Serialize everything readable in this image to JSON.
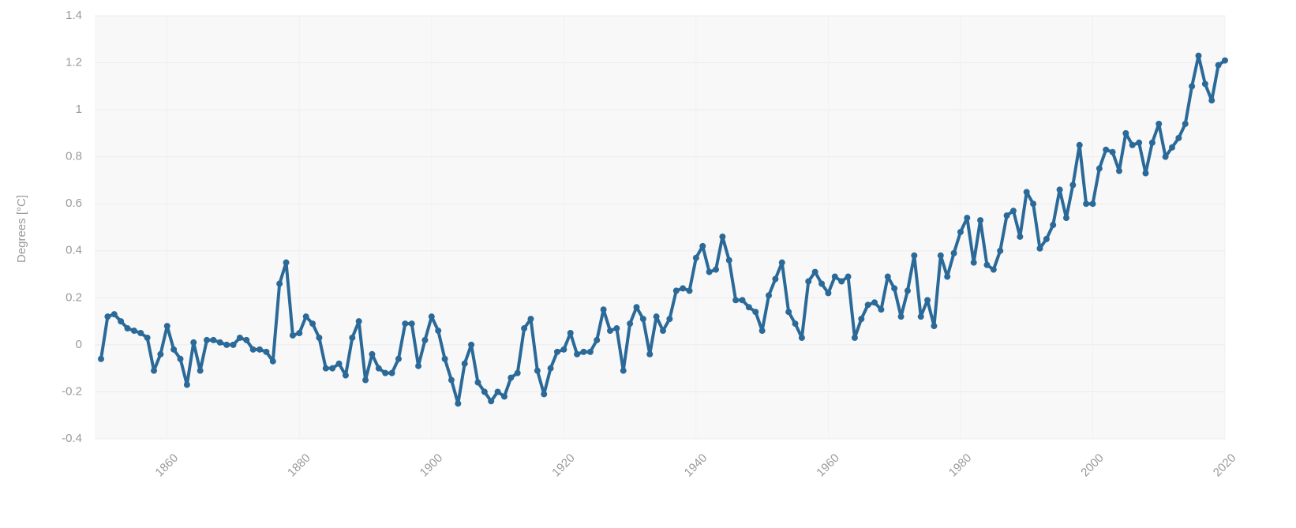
{
  "chart_data": {
    "type": "line",
    "y_label": "Degrees [°C]",
    "x": [
      1850,
      1851,
      1852,
      1853,
      1854,
      1855,
      1856,
      1857,
      1858,
      1859,
      1860,
      1861,
      1862,
      1863,
      1864,
      1865,
      1866,
      1867,
      1868,
      1869,
      1870,
      1871,
      1872,
      1873,
      1874,
      1875,
      1876,
      1877,
      1878,
      1879,
      1880,
      1881,
      1882,
      1883,
      1884,
      1885,
      1886,
      1887,
      1888,
      1889,
      1890,
      1891,
      1892,
      1893,
      1894,
      1895,
      1896,
      1897,
      1898,
      1899,
      1900,
      1901,
      1902,
      1903,
      1904,
      1905,
      1906,
      1907,
      1908,
      1909,
      1910,
      1911,
      1912,
      1913,
      1914,
      1915,
      1916,
      1917,
      1918,
      1919,
      1920,
      1921,
      1922,
      1923,
      1924,
      1925,
      1926,
      1927,
      1928,
      1929,
      1930,
      1931,
      1932,
      1933,
      1934,
      1935,
      1936,
      1937,
      1938,
      1939,
      1940,
      1941,
      1942,
      1943,
      1944,
      1945,
      1946,
      1947,
      1948,
      1949,
      1950,
      1951,
      1952,
      1953,
      1954,
      1955,
      1956,
      1957,
      1958,
      1959,
      1960,
      1961,
      1962,
      1963,
      1964,
      1965,
      1966,
      1967,
      1968,
      1969,
      1970,
      1971,
      1972,
      1973,
      1974,
      1975,
      1976,
      1977,
      1978,
      1979,
      1980,
      1981,
      1982,
      1983,
      1984,
      1985,
      1986,
      1987,
      1988,
      1989,
      1990,
      1991,
      1992,
      1993,
      1994,
      1995,
      1996,
      1997,
      1998,
      1999,
      2000,
      2001,
      2002,
      2003,
      2004,
      2005,
      2006,
      2007,
      2008,
      2009,
      2010,
      2011,
      2012,
      2013,
      2014,
      2015,
      2016,
      2017,
      2018,
      2019,
      2020
    ],
    "series": [
      {
        "color": "#2b6a98",
        "values": [
          -0.06,
          0.12,
          0.13,
          0.1,
          0.07,
          0.06,
          0.05,
          0.03,
          -0.11,
          -0.04,
          0.08,
          -0.02,
          -0.06,
          -0.17,
          0.01,
          -0.11,
          0.02,
          0.02,
          0.01,
          0.0,
          0.0,
          0.03,
          0.02,
          -0.02,
          -0.02,
          -0.03,
          -0.07,
          0.26,
          0.35,
          0.04,
          0.05,
          0.12,
          0.09,
          0.03,
          -0.1,
          -0.1,
          -0.08,
          -0.13,
          0.03,
          0.1,
          -0.15,
          -0.04,
          -0.1,
          -0.12,
          -0.12,
          -0.06,
          0.09,
          0.09,
          -0.09,
          0.02,
          0.12,
          0.06,
          -0.06,
          -0.15,
          -0.25,
          -0.08,
          0.0,
          -0.16,
          -0.2,
          -0.24,
          -0.2,
          -0.22,
          -0.14,
          -0.12,
          0.07,
          0.11,
          -0.11,
          -0.21,
          -0.1,
          -0.03,
          -0.02,
          0.05,
          -0.04,
          -0.03,
          -0.03,
          0.02,
          0.15,
          0.06,
          0.07,
          -0.11,
          0.09,
          0.16,
          0.11,
          -0.04,
          0.12,
          0.06,
          0.11,
          0.23,
          0.24,
          0.23,
          0.37,
          0.42,
          0.31,
          0.32,
          0.46,
          0.36,
          0.19,
          0.19,
          0.16,
          0.14,
          0.06,
          0.21,
          0.28,
          0.35,
          0.14,
          0.09,
          0.03,
          0.27,
          0.31,
          0.26,
          0.22,
          0.29,
          0.27,
          0.29,
          0.03,
          0.11,
          0.17,
          0.18,
          0.15,
          0.29,
          0.24,
          0.12,
          0.23,
          0.38,
          0.12,
          0.19,
          0.08,
          0.38,
          0.29,
          0.39,
          0.48,
          0.54,
          0.35,
          0.53,
          0.34,
          0.32,
          0.4,
          0.55,
          0.57,
          0.46,
          0.65,
          0.6,
          0.41,
          0.45,
          0.51,
          0.66,
          0.54,
          0.68,
          0.85,
          0.6,
          0.6,
          0.75,
          0.83,
          0.82,
          0.74,
          0.9,
          0.85,
          0.86,
          0.73,
          0.86,
          0.94,
          0.8,
          0.84,
          0.88,
          0.94,
          1.1,
          1.23,
          1.11,
          1.04,
          1.19,
          1.21
        ]
      }
    ],
    "xlim": [
      1850,
      2020
    ],
    "xticks": [
      1860,
      1880,
      1900,
      1920,
      1940,
      1960,
      1980,
      2000,
      2020
    ],
    "ylim": [
      -0.4,
      1.4
    ],
    "yticks": [
      -0.4,
      -0.2,
      0,
      0.2,
      0.4,
      0.6,
      0.8,
      1,
      1.2,
      1.4
    ],
    "grid": true
  }
}
